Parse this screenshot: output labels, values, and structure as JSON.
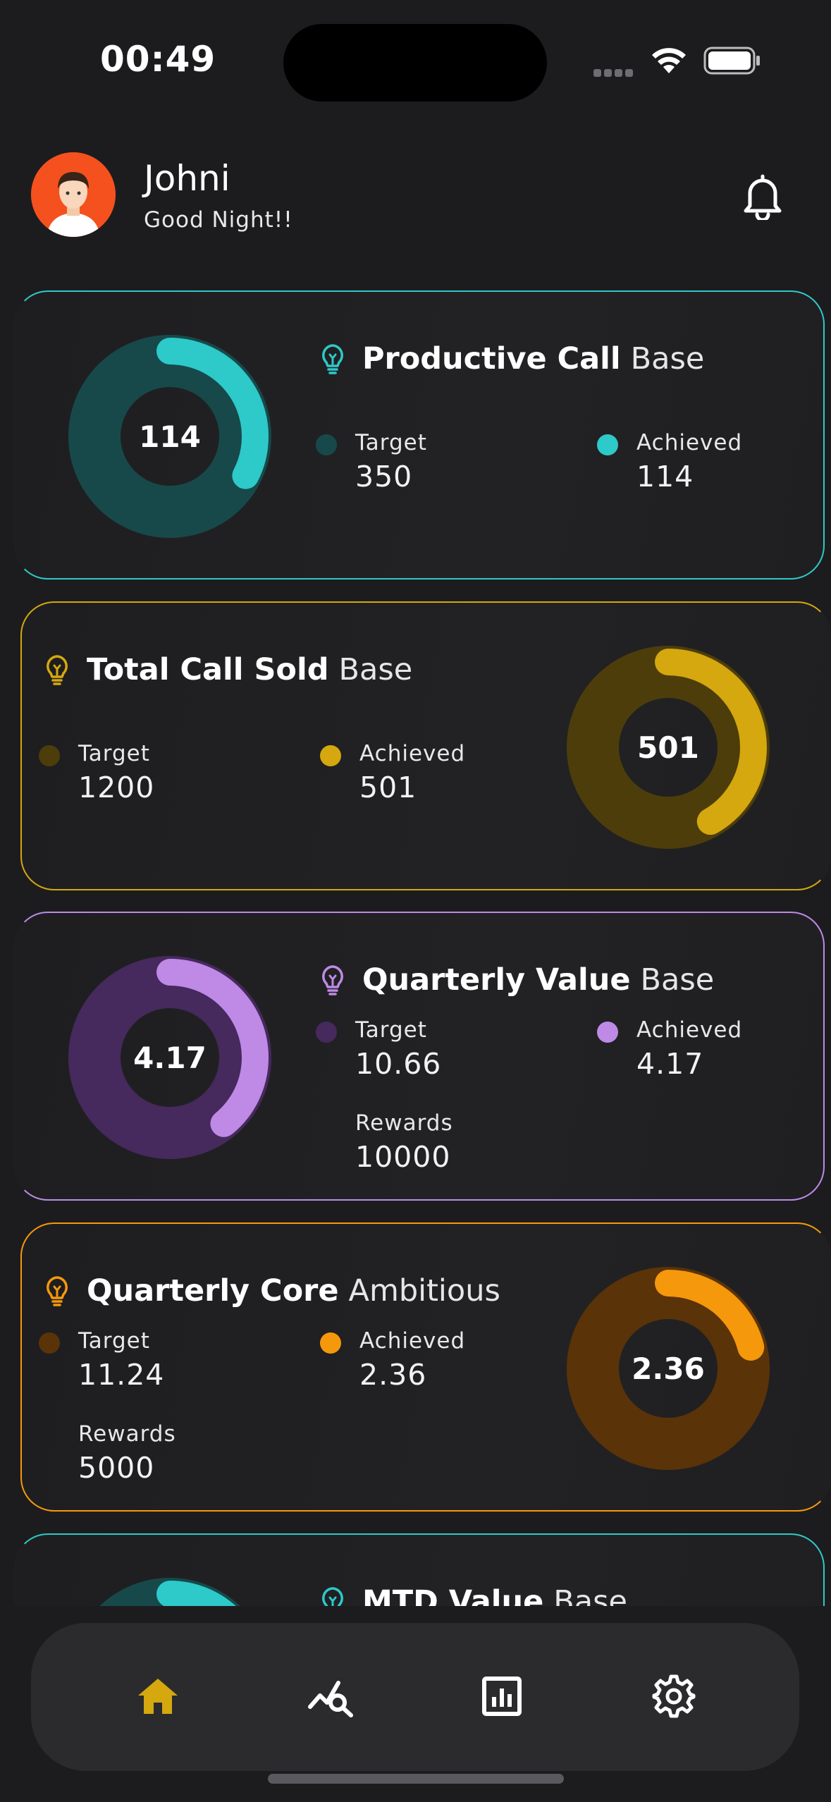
{
  "status_bar": {
    "time": "00:49"
  },
  "header": {
    "user_name": "Johni",
    "greeting": "Good Night!!"
  },
  "cards": [
    {
      "title_strong": "Productive Call",
      "title_light": "Base",
      "center_value": "114",
      "target_label": "Target",
      "target": "350",
      "achieved_label": "Achieved",
      "achieved": "114",
      "progress": 0.326,
      "accent": "#2ec9c9",
      "track": "#17494a"
    },
    {
      "title_strong": "Total Call Sold",
      "title_light": "Base",
      "center_value": "501",
      "target_label": "Target",
      "target": "1200",
      "achieved_label": "Achieved",
      "achieved": "501",
      "progress": 0.4175,
      "accent": "#d4a80e",
      "track": "#4d3d0b"
    },
    {
      "title_strong": "Quarterly Value",
      "title_light": "Base",
      "center_value": "4.17",
      "target_label": "Target",
      "target": "10.66",
      "achieved_label": "Achieved",
      "achieved": "4.17",
      "rewards_label": "Rewards",
      "rewards": "10000",
      "progress": 0.391,
      "accent": "#be8ae6",
      "track": "#46295d"
    },
    {
      "title_strong": "Quarterly Core",
      "title_light": "Ambitious",
      "center_value": "2.36",
      "target_label": "Target",
      "target": "11.24",
      "achieved_label": "Achieved",
      "achieved": "2.36",
      "rewards_label": "Rewards",
      "rewards": "5000",
      "progress": 0.21,
      "accent": "#f6980c",
      "track": "#5a3308"
    },
    {
      "title_strong": "MTD Value",
      "title_light": "Base",
      "accent": "#2ec9c9",
      "track": "#17494a"
    }
  ],
  "tabbar": {
    "items": [
      {
        "icon": "home-icon",
        "active": true
      },
      {
        "icon": "analytics-search-icon",
        "active": false
      },
      {
        "icon": "report-chart-icon",
        "active": false
      },
      {
        "icon": "settings-gear-icon",
        "active": false
      }
    ],
    "active_color": "#d4a80e"
  }
}
